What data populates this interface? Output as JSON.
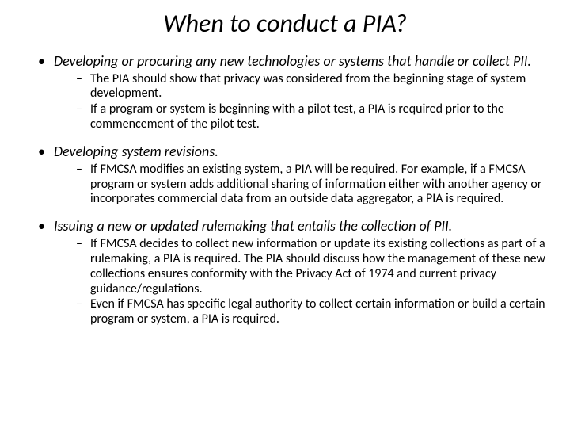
{
  "title": "When to conduct a PIA?",
  "bullets": [
    {
      "text": "Developing or procuring any new technologies or systems that handle or collect PII.",
      "sub": [
        "The PIA should show that privacy was considered from the beginning stage of system development.",
        "If a program or system is beginning with a pilot test, a PIA is required prior to the commencement of the pilot test."
      ]
    },
    {
      "text": "Developing system revisions.",
      "sub": [
        "If FMCSA modifies an existing system, a PIA will be required.  For example, if a FMCSA program or system adds additional sharing of information either with another agency or incorporates commercial data from an outside data aggregator, a PIA is required."
      ]
    },
    {
      "text": "Issuing a new or updated rulemaking that entails the collection of PII.",
      "sub": [
        "If FMCSA decides to collect new information or update its existing collections as part of a rulemaking, a PIA is required.  The PIA should discuss how the management of these new collections ensures conformity with the Privacy Act of 1974 and current privacy guidance/regulations.",
        "Even if FMCSA has specific legal authority to collect certain information or build a certain program or system, a PIA is required."
      ]
    }
  ]
}
